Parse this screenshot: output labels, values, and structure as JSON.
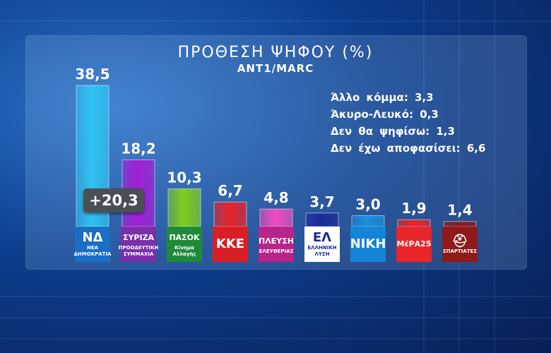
{
  "chart_data": {
    "type": "bar",
    "title": "ΠΡΟΘΕΣΗ ΨΗΦΟΥ (%)",
    "subtitle": "ANT1/MARC",
    "categories": [
      "ΝΔ",
      "ΣΥΡΙΖΑ",
      "ΠΑΣΟΚ",
      "ΚΚΕ",
      "ΠΛΕΥΣΗ ΕΛΕΥΘΕΡΙΑΣ",
      "ΕΛΛΗΝΙΚΗ ΛΥΣΗ",
      "ΝΙΚΗ",
      "ΜέΡΑ25",
      "ΣΠΑΡΤΙΑΤΕΣ"
    ],
    "values": [
      38.5,
      18.2,
      10.3,
      6.7,
      4.8,
      3.7,
      3.0,
      1.9,
      1.4
    ],
    "labels": [
      "38,5",
      "18,2",
      "10,3",
      "6,7",
      "4,8",
      "3,7",
      "3,0",
      "1,9",
      "1,4"
    ],
    "colors": [
      "#2fc3f2",
      "#a31fd6",
      "#7fcf20",
      "#e8242b",
      "#f14cc0",
      "#1a2a9a",
      "#1b8fe0",
      "#e8262a",
      "#8e1a1a"
    ],
    "ylim": [
      0,
      38.5
    ],
    "lead_difference": "+20,3",
    "notes": [
      "Άλλο κόμμα: 3,3",
      "Άκυρο-Λευκό: 0,3",
      "Δεν θα ψηφίσω: 1,3",
      "Δεν έχω αποφασίσει: 6,6"
    ]
  },
  "logos": [
    {
      "symbol": "ΝΔ",
      "text": "ΝΕΑ ΔΗΜΟΚΡΑΤΙΑ",
      "color": "#1a6fc4"
    },
    {
      "symbol": "ΣΥΡΙΖΑ",
      "text": "ΠΡΟΟΔΕΥΤΙΚΗ ΣΥΜΜΑΧΙΑ",
      "color": "#7b2fa8"
    },
    {
      "symbol": "ΠΑΣΟΚ",
      "text": "Κίνημα Αλλαγής",
      "color": "#1f8a3a"
    },
    {
      "symbol": "ΚΚΕ",
      "text": "",
      "color": "#d81f26"
    },
    {
      "symbol": "ΠΛΕΥΣΗ",
      "text": "ΕΛΕΥΘΕΡΙΑΣ",
      "color": "#b8248a"
    },
    {
      "symbol": "ΕΛ",
      "text": "ΕΛΛΗΝΙΚΗ ΛΥΣΗ",
      "color": "#ffffff"
    },
    {
      "symbol": "ΝΙΚΗ",
      "text": "",
      "color": "#1583d6"
    },
    {
      "symbol": "ΜέΡΑ25",
      "text": "",
      "color": "#e8262a"
    },
    {
      "symbol": "⛑",
      "text": "ΣΠΑΡΤΙΑΤΕΣ",
      "color": "#8e1a1a"
    }
  ]
}
